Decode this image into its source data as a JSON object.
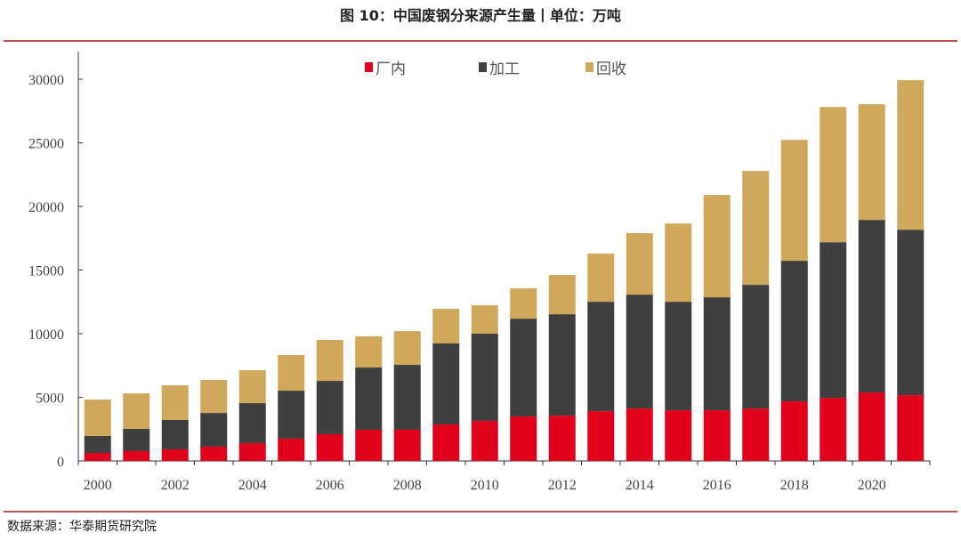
{
  "title": "图 10：中国废钢分来源产生量丨单位：万吨",
  "source": "数据来源：华泰期货研究院",
  "chart_data": {
    "type": "bar",
    "stacked": true,
    "categories": [
      "2000",
      "2001",
      "2002",
      "2003",
      "2004",
      "2005",
      "2006",
      "2007",
      "2008",
      "2009",
      "2010",
      "2011",
      "2012",
      "2013",
      "2014",
      "2015",
      "2016",
      "2017",
      "2018",
      "2019",
      "2020",
      "2021"
    ],
    "x_tick_labels": [
      "2000",
      "2002",
      "2004",
      "2006",
      "2008",
      "2010",
      "2012",
      "2014",
      "2016",
      "2018",
      "2020"
    ],
    "y_tick_labels": [
      "0",
      "5000",
      "10000",
      "15000",
      "20000",
      "25000",
      "30000"
    ],
    "ylim": [
      0,
      32000
    ],
    "legend_position": "top-center",
    "grid": false,
    "series": [
      {
        "name": "厂内",
        "color": "#e0001b",
        "values": [
          630,
          770,
          910,
          1120,
          1400,
          1750,
          2100,
          2450,
          2450,
          2870,
          3150,
          3500,
          3560,
          3910,
          4120,
          3980,
          3980,
          4120,
          4680,
          4960,
          5380,
          5170
        ]
      },
      {
        "name": "加工",
        "color": "#3f3f3f",
        "values": [
          1330,
          1750,
          2310,
          2650,
          3140,
          3770,
          4190,
          4890,
          5100,
          6360,
          6850,
          7680,
          7970,
          8600,
          8950,
          8530,
          8880,
          9720,
          11050,
          12230,
          13560,
          13000
        ]
      },
      {
        "name": "回收",
        "color": "#d0a85c",
        "values": [
          2860,
          2790,
          2720,
          2590,
          2590,
          2800,
          3220,
          2450,
          2650,
          2720,
          2230,
          2380,
          3080,
          3780,
          4830,
          6150,
          8040,
          8950,
          9500,
          10630,
          9090,
          11750
        ]
      }
    ]
  }
}
